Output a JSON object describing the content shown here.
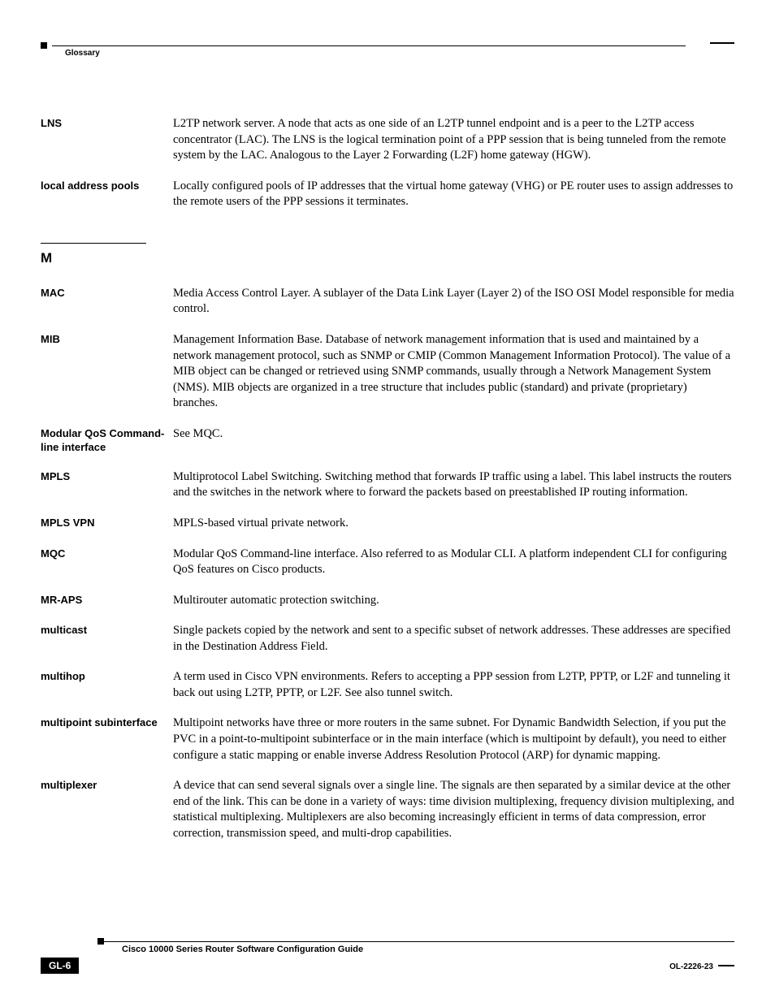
{
  "header": {
    "section": "Glossary"
  },
  "entries_top": [
    {
      "term": "LNS",
      "def": "L2TP network server. A node that acts as one side of an L2TP tunnel endpoint and is a peer to the L2TP access concentrator (LAC). The LNS is the logical termination point of a PPP session that is being tunneled from the remote system by the LAC. Analogous to the Layer 2 Forwarding (L2F) home gateway (HGW)."
    },
    {
      "term": "local address pools",
      "def": "Locally configured pools of IP addresses that the virtual home gateway (VHG) or PE router uses to assign addresses to the remote users of the PPP sessions it terminates."
    }
  ],
  "section_letter": "M",
  "entries_m": [
    {
      "term": "MAC",
      "def": "Media Access Control Layer. A sublayer of the Data Link Layer (Layer 2) of the ISO OSI Model responsible for media control."
    },
    {
      "term": "MIB",
      "def": "Management Information Base. Database of network management information that is used and maintained by a network management protocol, such as SNMP or CMIP (Common Management Information Protocol). The value of a MIB object can be changed or retrieved using SNMP commands, usually through a Network Management System (NMS). MIB objects are organized in a tree structure that includes public (standard) and private (proprietary) branches."
    },
    {
      "term": "Modular QoS Command-line interface",
      "def": "See MQC."
    },
    {
      "term": "MPLS",
      "def": "Multiprotocol Label Switching. Switching method that forwards IP traffic using a label. This label instructs the routers and the switches in the network where to forward the packets based on preestablished IP routing information."
    },
    {
      "term": "MPLS VPN",
      "def": "MPLS-based virtual private network."
    },
    {
      "term": "MQC",
      "def": "Modular QoS Command-line interface. Also referred to as Modular CLI. A platform independent CLI for configuring QoS features on Cisco products."
    },
    {
      "term": "MR-APS",
      "def": "Multirouter automatic protection switching."
    },
    {
      "term": "multicast",
      "def": "Single packets copied by the network and sent to a specific subset of network addresses. These addresses are specified in the Destination Address Field."
    },
    {
      "term": "multihop",
      "def": "A term used in Cisco VPN environments. Refers to accepting a PPP session from L2TP, PPTP, or L2F and tunneling it back out using L2TP, PPTP, or L2F. See also tunnel switch."
    },
    {
      "term": "multipoint subinterface",
      "def": "Multipoint networks have three or more routers in the same subnet. For Dynamic Bandwidth Selection, if you put the PVC in a point-to-multipoint subinterface or in the main interface (which is multipoint by default), you need to either configure a static mapping or enable inverse Address Resolution Protocol (ARP) for dynamic mapping."
    },
    {
      "term": "multiplexer",
      "def": "A device that can send several signals over a single line. The signals are then separated by a similar device at the other end of the link. This can be done in a variety of ways: time division multiplexing, frequency division multiplexing, and statistical multiplexing. Multiplexers are also becoming increasingly efficient in terms of data compression, error correction, transmission speed, and multi-drop capabilities."
    }
  ],
  "footer": {
    "title": "Cisco 10000 Series Router Software Configuration Guide",
    "page": "GL-6",
    "docid": "OL-2226-23"
  }
}
